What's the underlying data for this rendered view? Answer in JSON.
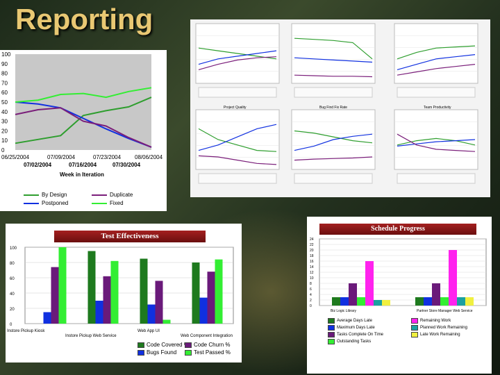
{
  "slide": {
    "title": "Reporting"
  },
  "colors": {
    "green": "#2e9e2e",
    "blue": "#1030e0",
    "purple": "#7a1e7a",
    "lime": "#33ee33",
    "bg": "#1d2a1a"
  },
  "chart_data": [
    {
      "id": "bug-trend",
      "type": "line",
      "title": "",
      "xlabel": "Week in Iteration",
      "ylabel": "",
      "ylim": [
        0,
        100
      ],
      "yticks": [
        0,
        10,
        20,
        30,
        40,
        50,
        60,
        70,
        80,
        90,
        100
      ],
      "xticks_top": [
        "06/25/2004",
        "07/09/2004",
        "07/23/2004",
        "08/06/2004"
      ],
      "xticks_bottom": [
        "07/02/2004",
        "07/16/2004",
        "07/30/2004"
      ],
      "x": [
        0,
        1,
        2,
        3,
        4,
        5,
        6
      ],
      "series": [
        {
          "name": "By Design",
          "color": "#2e9e2e",
          "values": [
            7,
            11,
            15,
            36,
            41,
            45,
            55
          ]
        },
        {
          "name": "Postponed",
          "color": "#1030e0",
          "values": [
            50,
            48,
            44,
            33,
            22,
            12,
            3
          ]
        },
        {
          "name": "Duplicate",
          "color": "#7a1e7a",
          "values": [
            37,
            42,
            44,
            30,
            25,
            13,
            3
          ]
        },
        {
          "name": "Fixed",
          "color": "#33ee33",
          "values": [
            50,
            52,
            58,
            59,
            55,
            61,
            65
          ]
        }
      ]
    },
    {
      "id": "test-effectiveness",
      "type": "bar",
      "title": "Test Effectiveness",
      "ylim": [
        0,
        100
      ],
      "yticks": [
        0,
        20,
        40,
        60,
        80,
        100
      ],
      "categories": [
        "Instore Pickup Kiosk",
        "Instore Pickup Web Service",
        "Web App UI",
        "Web Component Integration"
      ],
      "series": [
        {
          "name": "Code Covered %",
          "color": "#1e7a1e",
          "values": [
            0,
            95,
            85,
            80
          ]
        },
        {
          "name": "Bugs Found",
          "color": "#1030e0",
          "values": [
            15,
            30,
            25,
            34
          ]
        },
        {
          "name": "Code Churn %",
          "color": "#6a1a7a",
          "values": [
            74,
            62,
            56,
            68
          ]
        },
        {
          "name": "Test Passed %",
          "color": "#33ee33",
          "values": [
            100,
            82,
            5,
            84
          ]
        }
      ]
    },
    {
      "id": "schedule-progress",
      "type": "bar",
      "title": "Schedule Progress",
      "ylim": [
        0,
        24
      ],
      "yticks": [
        0,
        2,
        4,
        6,
        8,
        10,
        12,
        14,
        16,
        18,
        20,
        22,
        24
      ],
      "categories": [
        "Biz Logic Library",
        "Partner Store Manager Web Service"
      ],
      "series": [
        {
          "name": "Average Days Late",
          "color": "#1e7a1e",
          "values": [
            3,
            3
          ]
        },
        {
          "name": "Maximum Days Late",
          "color": "#1030e0",
          "values": [
            3,
            3
          ]
        },
        {
          "name": "Tasks Complete On Time",
          "color": "#6a1a7a",
          "values": [
            8,
            8
          ]
        },
        {
          "name": "Outstanding Tasks",
          "color": "#33ee33",
          "values": [
            3,
            3
          ]
        },
        {
          "name": "Remaining Work",
          "color": "#ff22ee",
          "values": [
            16,
            20
          ]
        },
        {
          "name": "Planned Work Remaining",
          "color": "#1aa0a0",
          "values": [
            2,
            3
          ]
        },
        {
          "name": "Late Work Remaining",
          "color": "#f0f040",
          "values": [
            2,
            3
          ]
        }
      ]
    }
  ],
  "legend_left": {
    "by_design": "By Design",
    "postponed": "Postponed",
    "duplicate": "Duplicate",
    "fixed": "Fixed"
  },
  "legend_test": {
    "l1": "Code Covered %",
    "l2": "Bugs Found",
    "l3": "Code Churn %",
    "l4": "Test Passed %"
  },
  "legend_sched": {
    "l1": "Average Days Late",
    "l2": "Maximum Days Late",
    "l3": "Tasks Complete On Time",
    "l4": "Outstanding Tasks",
    "l5": "Remaining Work",
    "l6": "Planned Work Remaining",
    "l7": "Late Work Remaining"
  },
  "mini_charts": {
    "c5": "Project Quality",
    "c6": "Bug Find Fix Rate",
    "c7": "Team Productivity"
  }
}
